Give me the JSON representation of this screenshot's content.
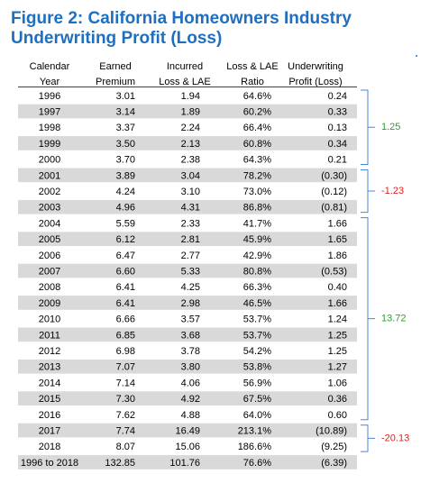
{
  "header": {
    "title_lines": [
      "Figure 2: California Homeowners Industry",
      "Underwriting Profit (Loss)"
    ]
  },
  "table": {
    "columns": [
      [
        "Calendar",
        "Year"
      ],
      [
        "Earned",
        "Premium"
      ],
      [
        "Incurred",
        "Loss & LAE"
      ],
      [
        "Loss & LAE",
        "Ratio"
      ],
      [
        "Underwriting",
        "Profit (Loss)"
      ]
    ],
    "rows": [
      [
        "1996",
        "3.01",
        "1.94",
        "64.6%",
        "0.24"
      ],
      [
        "1997",
        "3.14",
        "1.89",
        "60.2%",
        "0.33"
      ],
      [
        "1998",
        "3.37",
        "2.24",
        "66.4%",
        "0.13"
      ],
      [
        "1999",
        "3.50",
        "2.13",
        "60.8%",
        "0.34"
      ],
      [
        "2000",
        "3.70",
        "2.38",
        "64.3%",
        "0.21"
      ],
      [
        "2001",
        "3.89",
        "3.04",
        "78.2%",
        "(0.30)"
      ],
      [
        "2002",
        "4.24",
        "3.10",
        "73.0%",
        "(0.12)"
      ],
      [
        "2003",
        "4.96",
        "4.31",
        "86.8%",
        "(0.81)"
      ],
      [
        "2004",
        "5.59",
        "2.33",
        "41.7%",
        "1.66"
      ],
      [
        "2005",
        "6.12",
        "2.81",
        "45.9%",
        "1.65"
      ],
      [
        "2006",
        "6.47",
        "2.77",
        "42.9%",
        "1.86"
      ],
      [
        "2007",
        "6.60",
        "5.33",
        "80.8%",
        "(0.53)"
      ],
      [
        "2008",
        "6.41",
        "4.25",
        "66.3%",
        "0.40"
      ],
      [
        "2009",
        "6.41",
        "2.98",
        "46.5%",
        "1.66"
      ],
      [
        "2010",
        "6.66",
        "3.57",
        "53.7%",
        "1.24"
      ],
      [
        "2011",
        "6.85",
        "3.68",
        "53.7%",
        "1.25"
      ],
      [
        "2012",
        "6.98",
        "3.78",
        "54.2%",
        "1.25"
      ],
      [
        "2013",
        "7.07",
        "3.80",
        "53.8%",
        "1.27"
      ],
      [
        "2014",
        "7.14",
        "4.06",
        "56.9%",
        "1.06"
      ],
      [
        "2015",
        "7.30",
        "4.92",
        "67.5%",
        "0.36"
      ],
      [
        "2016",
        "7.62",
        "4.88",
        "64.0%",
        "0.60"
      ],
      [
        "2017",
        "7.74",
        "16.49",
        "213.1%",
        "(10.89)"
      ],
      [
        "2018",
        "8.07",
        "15.06",
        "186.6%",
        "(9.25)"
      ],
      [
        "1996 to 2018",
        "132.85",
        "101.76",
        "76.6%",
        "(6.39)"
      ]
    ],
    "groups": [
      {
        "label": "1.25",
        "color": "#2ca02c"
      },
      {
        "label": "-1.23",
        "color": "#e02020"
      },
      {
        "label": "13.72",
        "color": "#2ca02c"
      },
      {
        "label": "-20.13",
        "color": "#e02020"
      }
    ]
  }
}
